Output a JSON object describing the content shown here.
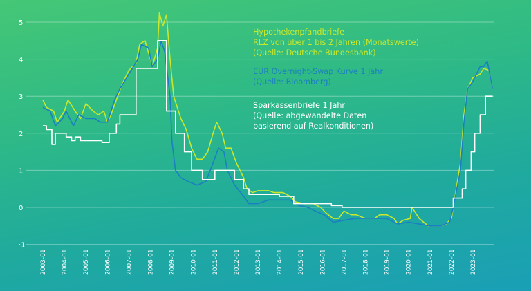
{
  "chart_data": {
    "type": "line",
    "title": "",
    "xlabel": "",
    "ylabel": "",
    "ylim": [
      -1,
      5
    ],
    "yticks": [
      "-1",
      "0",
      "1",
      "2",
      "3",
      "4",
      "5"
    ],
    "xticks": [
      "2003-01",
      "2004-01",
      "2005-01",
      "2006-01",
      "2007-01",
      "2008-01",
      "2009-01",
      "2010-01",
      "2011-01",
      "2012-01",
      "2013-01",
      "2014-01",
      "2015-01",
      "2016-01",
      "2017-01",
      "2018-01",
      "2019-01",
      "2020-01",
      "2021-01",
      "2022-01",
      "2023-01"
    ],
    "grid": true,
    "legend_placement": "top-center",
    "series": [
      {
        "name_lines": [
          "Hypothekenpfandbriefe –",
          "RLZ von über 1 bis 2 Jahren (Monatswerte)",
          "(Quelle: Deutsche Bundesbank)"
        ],
        "color": "#c9e82b",
        "style": "line",
        "points": [
          [
            "2003-01",
            2.9
          ],
          [
            "2003-03",
            2.7
          ],
          [
            "2003-07",
            2.6
          ],
          [
            "2003-09",
            2.3
          ],
          [
            "2004-01",
            2.6
          ],
          [
            "2004-03",
            2.9
          ],
          [
            "2004-07",
            2.6
          ],
          [
            "2004-10",
            2.4
          ],
          [
            "2005-01",
            2.8
          ],
          [
            "2005-05",
            2.6
          ],
          [
            "2005-08",
            2.5
          ],
          [
            "2005-11",
            2.6
          ],
          [
            "2006-01",
            2.3
          ],
          [
            "2006-03",
            2.5
          ],
          [
            "2006-06",
            2.9
          ],
          [
            "2006-09",
            3.3
          ],
          [
            "2007-01",
            3.7
          ],
          [
            "2007-05",
            3.9
          ],
          [
            "2007-07",
            4.4
          ],
          [
            "2007-10",
            4.5
          ],
          [
            "2008-01",
            4.0
          ],
          [
            "2008-02",
            3.8
          ],
          [
            "2008-05",
            4.3
          ],
          [
            "2008-06",
            5.25
          ],
          [
            "2008-08",
            4.9
          ],
          [
            "2008-10",
            5.2
          ],
          [
            "2008-12",
            4.0
          ],
          [
            "2009-02",
            3.0
          ],
          [
            "2009-06",
            2.4
          ],
          [
            "2009-09",
            2.1
          ],
          [
            "2009-12",
            1.6
          ],
          [
            "2010-03",
            1.3
          ],
          [
            "2010-06",
            1.3
          ],
          [
            "2010-09",
            1.5
          ],
          [
            "2010-12",
            2.0
          ],
          [
            "2011-02",
            2.3
          ],
          [
            "2011-05",
            2.0
          ],
          [
            "2011-07",
            1.6
          ],
          [
            "2011-10",
            1.6
          ],
          [
            "2012-01",
            1.2
          ],
          [
            "2012-05",
            0.8
          ],
          [
            "2012-07",
            0.5
          ],
          [
            "2012-10",
            0.4
          ],
          [
            "2013-01",
            0.45
          ],
          [
            "2013-07",
            0.45
          ],
          [
            "2013-10",
            0.4
          ],
          [
            "2014-03",
            0.4
          ],
          [
            "2014-07",
            0.3
          ],
          [
            "2014-10",
            0.15
          ],
          [
            "2015-03",
            0.1
          ],
          [
            "2015-08",
            0.1
          ],
          [
            "2015-12",
            0.0
          ],
          [
            "2016-03",
            -0.15
          ],
          [
            "2016-07",
            -0.3
          ],
          [
            "2016-10",
            -0.3
          ],
          [
            "2017-01",
            -0.1
          ],
          [
            "2017-05",
            -0.2
          ],
          [
            "2017-08",
            -0.2
          ],
          [
            "2018-01",
            -0.3
          ],
          [
            "2018-06",
            -0.3
          ],
          [
            "2018-09",
            -0.2
          ],
          [
            "2019-01",
            -0.2
          ],
          [
            "2019-05",
            -0.3
          ],
          [
            "2019-07",
            -0.45
          ],
          [
            "2019-10",
            -0.35
          ],
          [
            "2020-02",
            -0.3
          ],
          [
            "2020-03",
            0.0
          ],
          [
            "2020-07",
            -0.3
          ],
          [
            "2020-12",
            -0.5
          ],
          [
            "2021-03",
            -0.5
          ],
          [
            "2021-07",
            -0.5
          ],
          [
            "2021-10",
            -0.45
          ],
          [
            "2022-01",
            -0.3
          ],
          [
            "2022-03",
            0.3
          ],
          [
            "2022-06",
            1.2
          ],
          [
            "2022-08",
            2.5
          ],
          [
            "2022-10",
            3.2
          ],
          [
            "2023-01",
            3.5
          ],
          [
            "2023-05",
            3.6
          ],
          [
            "2023-07",
            3.75
          ],
          [
            "2023-10",
            3.7
          ],
          [
            "2023-12",
            3.2
          ]
        ]
      },
      {
        "name_lines": [
          "EUR Overnight-Swap Kurve 1 Jahr",
          "(Quelle: Bloomberg)"
        ],
        "color": "#1b7fc1",
        "style": "line",
        "points": [
          [
            "2003-01",
            2.7
          ],
          [
            "2003-05",
            2.6
          ],
          [
            "2003-08",
            2.2
          ],
          [
            "2003-12",
            2.4
          ],
          [
            "2004-02",
            2.6
          ],
          [
            "2004-06",
            2.2
          ],
          [
            "2004-09",
            2.5
          ],
          [
            "2005-01",
            2.4
          ],
          [
            "2005-06",
            2.4
          ],
          [
            "2005-09",
            2.3
          ],
          [
            "2006-01",
            2.3
          ],
          [
            "2006-05",
            2.9
          ],
          [
            "2006-08",
            3.2
          ],
          [
            "2007-01",
            3.6
          ],
          [
            "2007-06",
            4.0
          ],
          [
            "2007-08",
            4.4
          ],
          [
            "2007-12",
            4.3
          ],
          [
            "2008-02",
            3.8
          ],
          [
            "2008-05",
            4.0
          ],
          [
            "2008-07",
            4.5
          ],
          [
            "2008-09",
            4.2
          ],
          [
            "2008-12",
            3.0
          ],
          [
            "2009-01",
            1.8
          ],
          [
            "2009-03",
            1.0
          ],
          [
            "2009-06",
            0.8
          ],
          [
            "2009-10",
            0.7
          ],
          [
            "2010-03",
            0.6
          ],
          [
            "2010-08",
            0.7
          ],
          [
            "2010-12",
            1.2
          ],
          [
            "2011-03",
            1.6
          ],
          [
            "2011-06",
            1.5
          ],
          [
            "2011-08",
            1.0
          ],
          [
            "2011-12",
            0.6
          ],
          [
            "2012-05",
            0.3
          ],
          [
            "2012-08",
            0.1
          ],
          [
            "2013-01",
            0.1
          ],
          [
            "2013-07",
            0.2
          ],
          [
            "2014-01",
            0.2
          ],
          [
            "2014-07",
            0.2
          ],
          [
            "2014-12",
            0.05
          ],
          [
            "2015-05",
            0.0
          ],
          [
            "2015-09",
            -0.1
          ],
          [
            "2016-02",
            -0.2
          ],
          [
            "2016-07",
            -0.4
          ],
          [
            "2017-01",
            -0.35
          ],
          [
            "2017-07",
            -0.3
          ],
          [
            "2018-01",
            -0.3
          ],
          [
            "2018-07",
            -0.3
          ],
          [
            "2019-01",
            -0.3
          ],
          [
            "2019-07",
            -0.45
          ],
          [
            "2020-01",
            -0.4
          ],
          [
            "2020-07",
            -0.45
          ],
          [
            "2021-01",
            -0.5
          ],
          [
            "2021-07",
            -0.5
          ],
          [
            "2021-12",
            -0.4
          ],
          [
            "2022-02",
            0.0
          ],
          [
            "2022-06",
            1.0
          ],
          [
            "2022-08",
            2.3
          ],
          [
            "2022-10",
            3.2
          ],
          [
            "2023-01",
            3.4
          ],
          [
            "2023-05",
            3.8
          ],
          [
            "2023-07",
            3.8
          ],
          [
            "2023-09",
            3.95
          ],
          [
            "2023-12",
            3.2
          ]
        ]
      },
      {
        "name_lines": [
          "Sparkassenbriefe 1 Jahr",
          "(Quelle: abgewandelte Daten",
          "basierend auf Realkonditionen)"
        ],
        "color": "#ffffff",
        "style": "step",
        "points": [
          [
            "2003-01",
            2.2
          ],
          [
            "2003-03",
            2.1
          ],
          [
            "2003-06",
            1.7
          ],
          [
            "2003-08",
            2.0
          ],
          [
            "2004-02",
            1.9
          ],
          [
            "2004-05",
            1.8
          ],
          [
            "2004-07",
            1.9
          ],
          [
            "2004-10",
            1.8
          ],
          [
            "2005-10",
            1.75
          ],
          [
            "2006-02",
            2.0
          ],
          [
            "2006-06",
            2.25
          ],
          [
            "2006-08",
            2.5
          ],
          [
            "2007-05",
            3.75
          ],
          [
            "2008-05",
            4.5
          ],
          [
            "2008-10",
            2.6
          ],
          [
            "2009-03",
            2.0
          ],
          [
            "2009-08",
            1.5
          ],
          [
            "2009-12",
            1.0
          ],
          [
            "2010-06",
            0.75
          ],
          [
            "2011-01",
            1.0
          ],
          [
            "2011-12",
            0.75
          ],
          [
            "2012-05",
            0.5
          ],
          [
            "2012-08",
            0.35
          ],
          [
            "2014-01",
            0.3
          ],
          [
            "2014-09",
            0.1
          ],
          [
            "2016-06",
            0.05
          ],
          [
            "2016-12",
            0.0
          ],
          [
            "2022-02",
            0.25
          ],
          [
            "2022-07",
            0.5
          ],
          [
            "2022-09",
            1.0
          ],
          [
            "2022-12",
            1.5
          ],
          [
            "2023-02",
            2.0
          ],
          [
            "2023-05",
            2.5
          ],
          [
            "2023-08",
            3.0
          ],
          [
            "2023-12",
            3.0
          ]
        ]
      }
    ]
  }
}
